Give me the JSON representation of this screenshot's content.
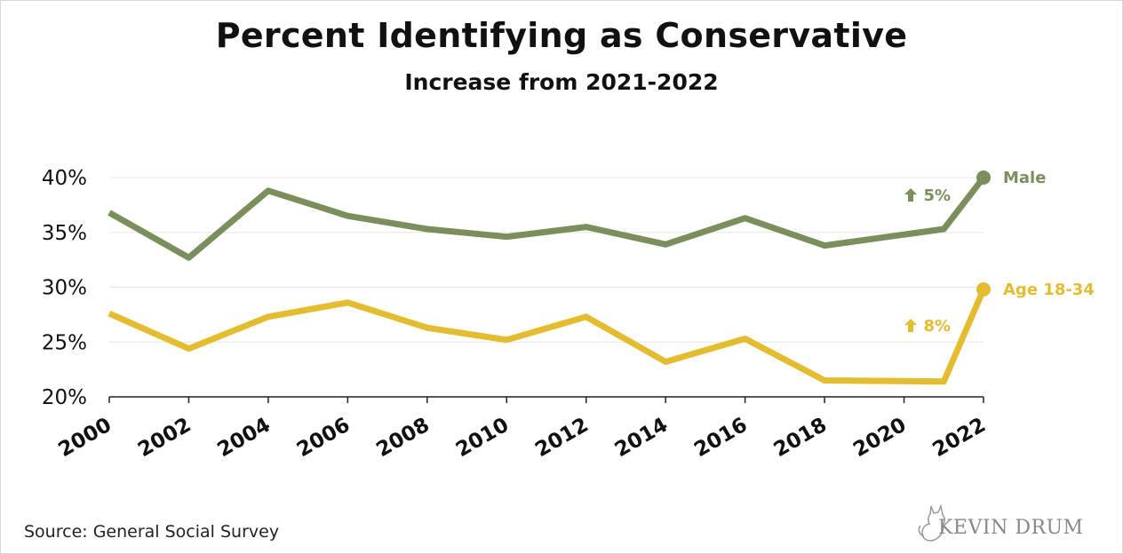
{
  "title": "Percent Identifying as Conservative",
  "subtitle": "Increase from 2021-2022",
  "source": "Source: General Social Survey",
  "logo_text": "KEVIN DRUM",
  "colors": {
    "male": "#7a8f5c",
    "age": "#e3bc2f",
    "grid": "#e6e6e6",
    "axis": "#222222"
  },
  "chart_data": {
    "type": "line",
    "title": "Percent Identifying as Conservative",
    "subtitle": "Increase from 2021-2022",
    "xlabel": "",
    "ylabel": "",
    "x": [
      2000,
      2002,
      2004,
      2006,
      2008,
      2010,
      2012,
      2014,
      2016,
      2018,
      2021,
      2022
    ],
    "x_ticks": [
      "2000",
      "2002",
      "2004",
      "2006",
      "2008",
      "2010",
      "2012",
      "2014",
      "2016",
      "2018",
      "2020",
      "2022"
    ],
    "x_tick_values": [
      2000,
      2002,
      2004,
      2006,
      2008,
      2010,
      2012,
      2014,
      2016,
      2018,
      2020,
      2022
    ],
    "xlim": [
      2000,
      2022
    ],
    "y_ticks": [
      "20%",
      "25%",
      "30%",
      "35%",
      "40%"
    ],
    "y_tick_values": [
      20,
      25,
      30,
      35,
      40
    ],
    "ylim": [
      20,
      40
    ],
    "grid": true,
    "series": [
      {
        "name": "Male",
        "color": "#7a8f5c",
        "values": [
          36.8,
          32.7,
          38.8,
          36.5,
          35.3,
          34.6,
          35.5,
          33.9,
          36.3,
          33.8,
          35.3,
          40.0
        ],
        "annotation": "5%",
        "annotation_icon": "up-arrow-icon"
      },
      {
        "name": "Age 18-34",
        "color": "#e3bc2f",
        "values": [
          27.6,
          24.4,
          27.3,
          28.6,
          26.3,
          25.2,
          27.3,
          23.2,
          25.3,
          21.5,
          21.4,
          29.8
        ],
        "annotation": "8%",
        "annotation_icon": "up-arrow-icon"
      }
    ]
  }
}
